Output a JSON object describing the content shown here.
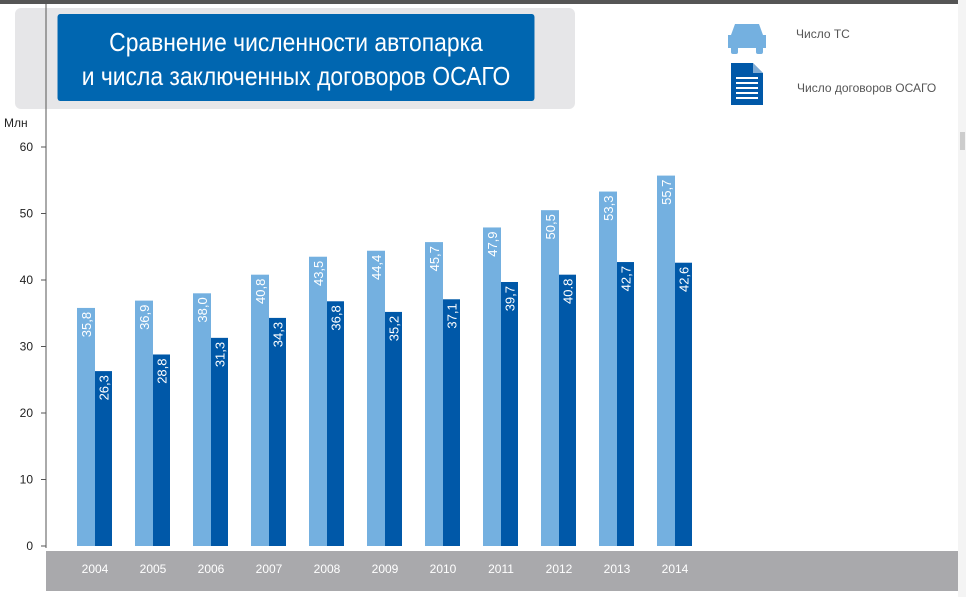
{
  "title_line1": "Сравнение численности автопарка",
  "title_line2": "и числа заключенных договоров ОСАГО",
  "legend": [
    {
      "label": "Число ТС",
      "icon": "car-icon",
      "color": "#74b0e0"
    },
    {
      "label": "Число договоров ОСАГО",
      "icon": "document-icon",
      "color": "#0058a8"
    }
  ],
  "chart_data": {
    "type": "bar",
    "ylabel": "Млн",
    "ylim": [
      0,
      60
    ],
    "yticks": [
      0,
      10,
      20,
      30,
      40,
      50,
      60
    ],
    "categories": [
      "2004",
      "2005",
      "2006",
      "2007",
      "2008",
      "2009",
      "2010",
      "2011",
      "2012",
      "2013",
      "2014"
    ],
    "series": [
      {
        "name": "Число ТС",
        "color": "#74b0e0",
        "values": [
          35.8,
          36.9,
          38.0,
          40.8,
          43.5,
          44.4,
          45.7,
          47.9,
          50.5,
          53.3,
          55.7
        ],
        "labels": [
          "35,8",
          "36,9",
          "38,0",
          "40,8",
          "43,5",
          "44,4",
          "45,7",
          "47,9",
          "50,5",
          "53,3",
          "55,7"
        ]
      },
      {
        "name": "Число договоров ОСАГО",
        "color": "#0058a8",
        "values": [
          26.3,
          28.8,
          31.3,
          34.3,
          36.8,
          35.2,
          37.1,
          39.7,
          40.8,
          42.7,
          42.6
        ],
        "labels": [
          "26,3",
          "28,8",
          "31,3",
          "34,3",
          "36,8",
          "35,2",
          "37,1",
          "39,7",
          "40.8",
          "42,7",
          "42,6"
        ]
      }
    ],
    "legend_position": "top-right",
    "grid": false
  }
}
